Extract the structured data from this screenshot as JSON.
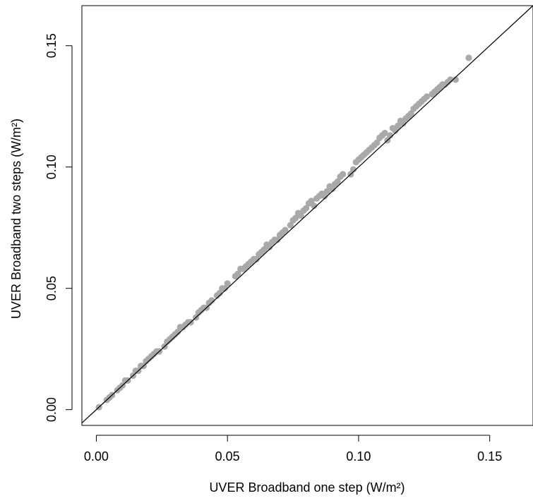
{
  "chart_data": {
    "type": "scatter",
    "xlabel": "UVER Broadband one step (W/m²)",
    "ylabel": "UVER Broadband two steps (W/m²)",
    "xlim": [
      -0.0055,
      0.1665
    ],
    "ylim": [
      -0.0065,
      0.1665
    ],
    "xticks": [
      0.0,
      0.05,
      0.1,
      0.15
    ],
    "yticks": [
      0.0,
      0.05,
      0.1,
      0.15
    ],
    "xtick_labels": [
      "0.00",
      "0.05",
      "0.10",
      "0.15"
    ],
    "ytick_labels": [
      "0.00",
      "0.05",
      "0.10",
      "0.15"
    ],
    "grid": false,
    "reference_line": {
      "type": "identity",
      "slope": 1,
      "intercept": 0
    },
    "point_color": "#a9a9a9",
    "line_color": "#000000",
    "points": [
      [
        0.001,
        0.001
      ],
      [
        0.004,
        0.004
      ],
      [
        0.005,
        0.005
      ],
      [
        0.006,
        0.006
      ],
      [
        0.008,
        0.008
      ],
      [
        0.009,
        0.009
      ],
      [
        0.01,
        0.01
      ],
      [
        0.011,
        0.012
      ],
      [
        0.012,
        0.012
      ],
      [
        0.014,
        0.014
      ],
      [
        0.015,
        0.016
      ],
      [
        0.016,
        0.016
      ],
      [
        0.017,
        0.018
      ],
      [
        0.018,
        0.018
      ],
      [
        0.019,
        0.02
      ],
      [
        0.02,
        0.021
      ],
      [
        0.021,
        0.022
      ],
      [
        0.022,
        0.023
      ],
      [
        0.023,
        0.024
      ],
      [
        0.024,
        0.024
      ],
      [
        0.026,
        0.026
      ],
      [
        0.027,
        0.028
      ],
      [
        0.028,
        0.029
      ],
      [
        0.029,
        0.03
      ],
      [
        0.03,
        0.031
      ],
      [
        0.031,
        0.032
      ],
      [
        0.032,
        0.034
      ],
      [
        0.033,
        0.034
      ],
      [
        0.034,
        0.035
      ],
      [
        0.035,
        0.036
      ],
      [
        0.036,
        0.036
      ],
      [
        0.038,
        0.038
      ],
      [
        0.039,
        0.04
      ],
      [
        0.04,
        0.041
      ],
      [
        0.041,
        0.042
      ],
      [
        0.042,
        0.042
      ],
      [
        0.043,
        0.044
      ],
      [
        0.044,
        0.045
      ],
      [
        0.046,
        0.047
      ],
      [
        0.047,
        0.048
      ],
      [
        0.048,
        0.05
      ],
      [
        0.049,
        0.05
      ],
      [
        0.05,
        0.052
      ],
      [
        0.053,
        0.055
      ],
      [
        0.054,
        0.056
      ],
      [
        0.055,
        0.058
      ],
      [
        0.056,
        0.058
      ],
      [
        0.057,
        0.059
      ],
      [
        0.058,
        0.06
      ],
      [
        0.059,
        0.061
      ],
      [
        0.06,
        0.062
      ],
      [
        0.061,
        0.062
      ],
      [
        0.062,
        0.064
      ],
      [
        0.063,
        0.065
      ],
      [
        0.064,
        0.066
      ],
      [
        0.065,
        0.068
      ],
      [
        0.066,
        0.067
      ],
      [
        0.067,
        0.069
      ],
      [
        0.068,
        0.07
      ],
      [
        0.069,
        0.07
      ],
      [
        0.07,
        0.072
      ],
      [
        0.071,
        0.073
      ],
      [
        0.072,
        0.074
      ],
      [
        0.074,
        0.076
      ],
      [
        0.075,
        0.078
      ],
      [
        0.076,
        0.079
      ],
      [
        0.077,
        0.081
      ],
      [
        0.078,
        0.08
      ],
      [
        0.079,
        0.082
      ],
      [
        0.08,
        0.083
      ],
      [
        0.081,
        0.085
      ],
      [
        0.082,
        0.086
      ],
      [
        0.083,
        0.084
      ],
      [
        0.084,
        0.087
      ],
      [
        0.085,
        0.088
      ],
      [
        0.086,
        0.089
      ],
      [
        0.087,
        0.088
      ],
      [
        0.088,
        0.09
      ],
      [
        0.089,
        0.092
      ],
      [
        0.09,
        0.091
      ],
      [
        0.091,
        0.093
      ],
      [
        0.092,
        0.094
      ],
      [
        0.093,
        0.096
      ],
      [
        0.094,
        0.097
      ],
      [
        0.097,
        0.097
      ],
      [
        0.098,
        0.099
      ],
      [
        0.099,
        0.102
      ],
      [
        0.1,
        0.103
      ],
      [
        0.101,
        0.104
      ],
      [
        0.102,
        0.105
      ],
      [
        0.103,
        0.106
      ],
      [
        0.104,
        0.107
      ],
      [
        0.105,
        0.108
      ],
      [
        0.106,
        0.109
      ],
      [
        0.107,
        0.11
      ],
      [
        0.108,
        0.112
      ],
      [
        0.109,
        0.113
      ],
      [
        0.11,
        0.114
      ],
      [
        0.111,
        0.111
      ],
      [
        0.112,
        0.113
      ],
      [
        0.113,
        0.116
      ],
      [
        0.114,
        0.115
      ],
      [
        0.115,
        0.117
      ],
      [
        0.116,
        0.119
      ],
      [
        0.117,
        0.118
      ],
      [
        0.118,
        0.12
      ],
      [
        0.119,
        0.121
      ],
      [
        0.12,
        0.122
      ],
      [
        0.121,
        0.124
      ],
      [
        0.122,
        0.125
      ],
      [
        0.123,
        0.126
      ],
      [
        0.124,
        0.127
      ],
      [
        0.125,
        0.128
      ],
      [
        0.126,
        0.129
      ],
      [
        0.128,
        0.13
      ],
      [
        0.129,
        0.131
      ],
      [
        0.13,
        0.132
      ],
      [
        0.131,
        0.133
      ],
      [
        0.132,
        0.134
      ],
      [
        0.133,
        0.134
      ],
      [
        0.134,
        0.135
      ],
      [
        0.135,
        0.136
      ],
      [
        0.137,
        0.136
      ],
      [
        0.142,
        0.145
      ]
    ]
  }
}
